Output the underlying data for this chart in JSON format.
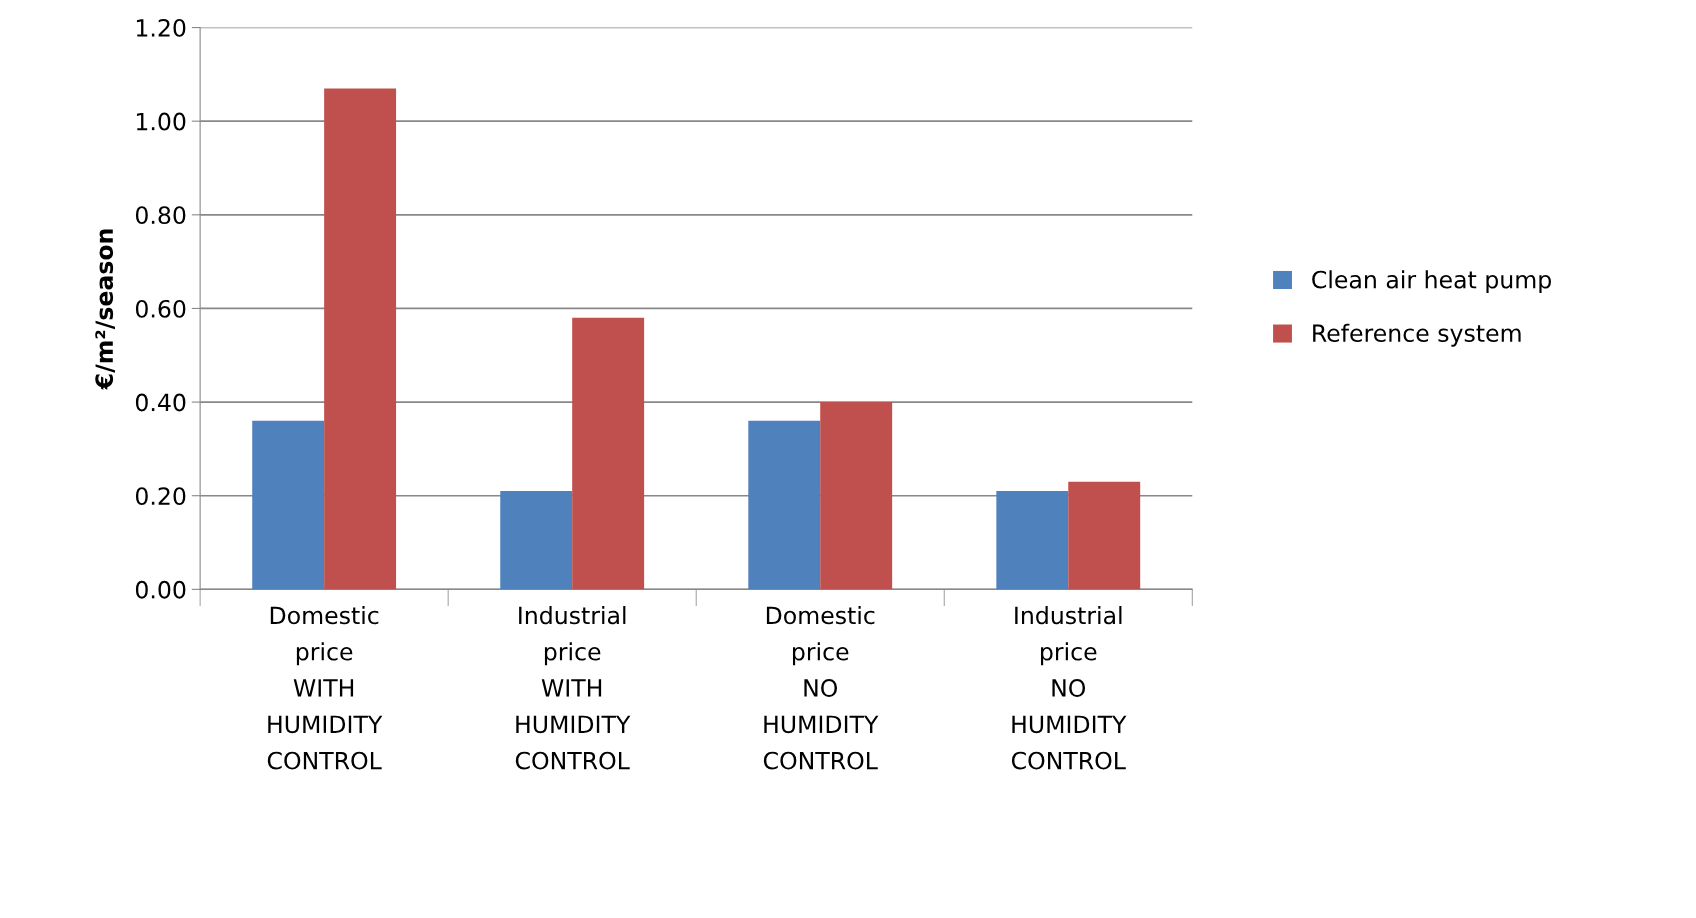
{
  "chart_data": {
    "type": "bar",
    "ylabel": "€/m²/season",
    "categories": [
      "Domestic\nprice\nWITH\nHUMIDITY\nCONTROL",
      "Industrial\nprice\nWITH\nHUMIDITY\nCONTROL",
      "Domestic\nprice\nNO\nHUMIDITY\nCONTROL",
      "Industrial\nprice\nNO\nHUMIDITY\nCONTROL"
    ],
    "series": [
      {
        "name": "Clean air heat pump",
        "color": "#4f81bd",
        "values": [
          0.36,
          0.21,
          0.36,
          0.21
        ]
      },
      {
        "name": "Reference system",
        "color": "#c0504d",
        "values": [
          1.07,
          0.58,
          0.4,
          0.23
        ]
      }
    ],
    "ylim": [
      0,
      1.2
    ],
    "yticks": [
      {
        "value": 0,
        "label": "0.00"
      },
      {
        "value": 0.2,
        "label": "0.20"
      },
      {
        "value": 0.4,
        "label": "0.40"
      },
      {
        "value": 0.6,
        "label": "0.60"
      },
      {
        "value": 0.8,
        "label": "0.80"
      },
      {
        "value": 1.0,
        "label": "1.00"
      },
      {
        "value": 1.2,
        "label": "1.20"
      }
    ],
    "grid": "y",
    "legend": "right"
  }
}
